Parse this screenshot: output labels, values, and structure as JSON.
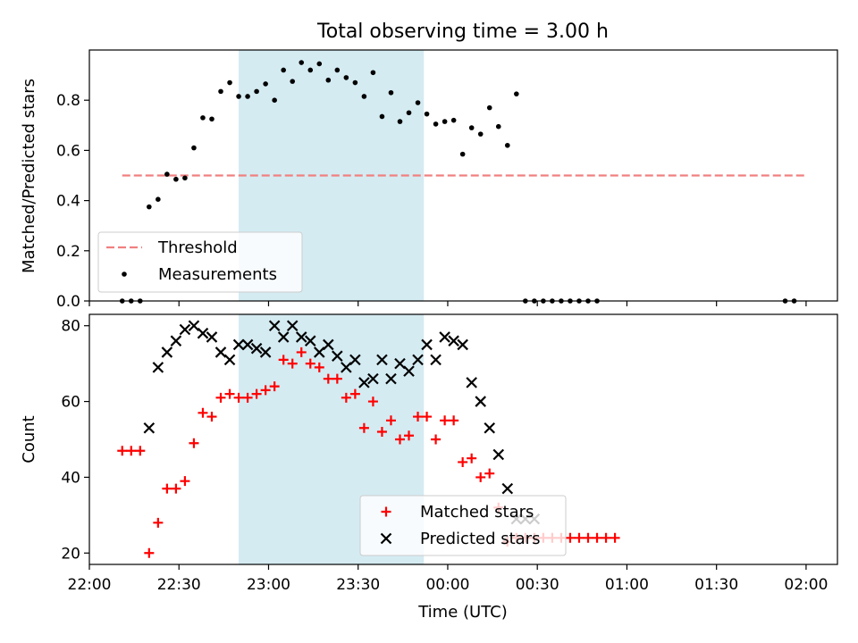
{
  "title": "Total observing time = 3.00 h",
  "colors": {
    "shade": "#add8e6",
    "threshold": "#f08080",
    "measurements": "#000000",
    "matched": "#ff0000",
    "predicted": "#000000"
  },
  "chart_data": [
    {
      "type": "scatter",
      "panel": "top",
      "ylabel": "Matched/Predicted stars",
      "xlabel": "",
      "ylim": [
        0,
        1.0
      ],
      "yticks": [
        0.0,
        0.2,
        0.4,
        0.6,
        0.8
      ],
      "ytick_labels": [
        "0.0",
        "0.2",
        "0.4",
        "0.6",
        "0.8"
      ],
      "xlim": [
        "22:00",
        "02:12"
      ],
      "shaded_interval": [
        "22:50",
        "23:52"
      ],
      "threshold": {
        "y": 0.5,
        "x_start": "22:11",
        "x_end": "02:00"
      },
      "legend": {
        "position": "lower-left",
        "entries": [
          "Threshold",
          "Measurements"
        ]
      },
      "series": [
        {
          "name": "Measurements",
          "marker": "dot",
          "x": [
            "22:11",
            "22:14",
            "22:17",
            "22:20",
            "22:23",
            "22:26",
            "22:29",
            "22:32",
            "22:35",
            "22:38",
            "22:41",
            "22:44",
            "22:47",
            "22:50",
            "22:53",
            "22:56",
            "22:59",
            "23:02",
            "23:05",
            "23:08",
            "23:11",
            "23:14",
            "23:17",
            "23:20",
            "23:23",
            "23:26",
            "23:29",
            "23:32",
            "23:35",
            "23:38",
            "23:41",
            "23:44",
            "23:47",
            "23:50",
            "23:53",
            "23:56",
            "23:59",
            "00:02",
            "00:05",
            "00:08",
            "00:11",
            "00:14",
            "00:17",
            "00:20",
            "00:23",
            "00:26",
            "00:29",
            "00:32",
            "00:35",
            "00:38",
            "00:41",
            "00:44",
            "00:47",
            "00:50",
            "01:53",
            "01:56"
          ],
          "y": [
            0.0,
            0.0,
            0.0,
            0.375,
            0.405,
            0.505,
            0.485,
            0.49,
            0.61,
            0.73,
            0.725,
            0.835,
            0.87,
            0.815,
            0.815,
            0.835,
            0.865,
            0.8,
            0.92,
            0.875,
            0.95,
            0.92,
            0.945,
            0.88,
            0.92,
            0.89,
            0.87,
            0.815,
            0.91,
            0.735,
            0.83,
            0.715,
            0.75,
            0.79,
            0.745,
            0.705,
            0.715,
            0.72,
            0.585,
            0.69,
            0.665,
            0.77,
            0.695,
            0.62,
            0.825,
            0.0,
            0.0,
            0.0,
            0.0,
            0.0,
            0.0,
            0.0,
            0.0,
            0.0,
            0.0,
            0.0
          ]
        }
      ]
    },
    {
      "type": "scatter",
      "panel": "bottom",
      "ylabel": "Count",
      "xlabel": "Time (UTC)",
      "ylim": [
        17,
        83
      ],
      "yticks": [
        20,
        40,
        60,
        80
      ],
      "ytick_labels": [
        "20",
        "40",
        "60",
        "80"
      ],
      "xticks": [
        "22:00",
        "22:30",
        "23:00",
        "23:30",
        "00:00",
        "00:30",
        "01:00",
        "01:30",
        "02:00"
      ],
      "xtick_labels": [
        "22:00",
        "22:30",
        "23:00",
        "23:30",
        "00:00",
        "00:30",
        "01:00",
        "01:30",
        "02:00"
      ],
      "legend": {
        "position": "lower-center",
        "entries": [
          "Matched stars",
          "Predicted stars"
        ]
      },
      "series": [
        {
          "name": "Matched stars",
          "marker": "plus",
          "x": [
            "22:11",
            "22:14",
            "22:17",
            "22:20",
            "22:23",
            "22:26",
            "22:29",
            "22:32",
            "22:35",
            "22:38",
            "22:41",
            "22:44",
            "22:47",
            "22:50",
            "22:53",
            "22:56",
            "22:59",
            "23:02",
            "23:05",
            "23:08",
            "23:11",
            "23:14",
            "23:17",
            "23:20",
            "23:23",
            "23:26",
            "23:29",
            "23:32",
            "23:35",
            "23:38",
            "23:41",
            "23:44",
            "23:47",
            "23:50",
            "23:53",
            "23:56",
            "23:59",
            "00:02",
            "00:05",
            "00:08",
            "00:11",
            "00:14",
            "00:17",
            "00:20",
            "00:23",
            "00:26",
            "00:29",
            "00:32",
            "00:35",
            "00:38",
            "00:41",
            "00:44",
            "00:47",
            "00:50",
            "00:53",
            "00:56"
          ],
          "y": [
            47,
            47,
            47,
            20,
            28,
            37,
            37,
            39,
            49,
            57,
            56,
            61,
            62,
            61,
            61,
            62,
            63,
            64,
            71,
            70,
            73,
            70,
            69,
            66,
            66,
            61,
            62,
            53,
            60,
            52,
            55,
            50,
            51,
            56,
            56,
            50,
            55,
            55,
            44,
            45,
            40,
            41,
            32,
            23,
            24,
            24,
            24,
            24,
            24,
            24,
            24,
            24,
            24,
            24,
            24,
            24
          ]
        },
        {
          "name": "Predicted stars",
          "marker": "x",
          "x": [
            "22:20",
            "22:23",
            "22:26",
            "22:29",
            "22:32",
            "22:35",
            "22:38",
            "22:41",
            "22:44",
            "22:47",
            "22:50",
            "22:53",
            "22:56",
            "22:59",
            "23:02",
            "23:05",
            "23:08",
            "23:11",
            "23:14",
            "23:17",
            "23:20",
            "23:23",
            "23:26",
            "23:29",
            "23:32",
            "23:35",
            "23:38",
            "23:41",
            "23:44",
            "23:47",
            "23:50",
            "23:53",
            "23:56",
            "23:59",
            "00:02",
            "00:05",
            "00:08",
            "00:11",
            "00:14",
            "00:17",
            "00:20",
            "00:23",
            "00:26",
            "00:29"
          ],
          "y": [
            53,
            69,
            73,
            76,
            79,
            80,
            78,
            77,
            73,
            71,
            75,
            75,
            74,
            73,
            80,
            77,
            80,
            77,
            76,
            73,
            75,
            72,
            69,
            71,
            65,
            66,
            71,
            66,
            70,
            68,
            71,
            75,
            71,
            77,
            76,
            75,
            65,
            60,
            53,
            46,
            37,
            29,
            29,
            29
          ]
        }
      ]
    }
  ]
}
